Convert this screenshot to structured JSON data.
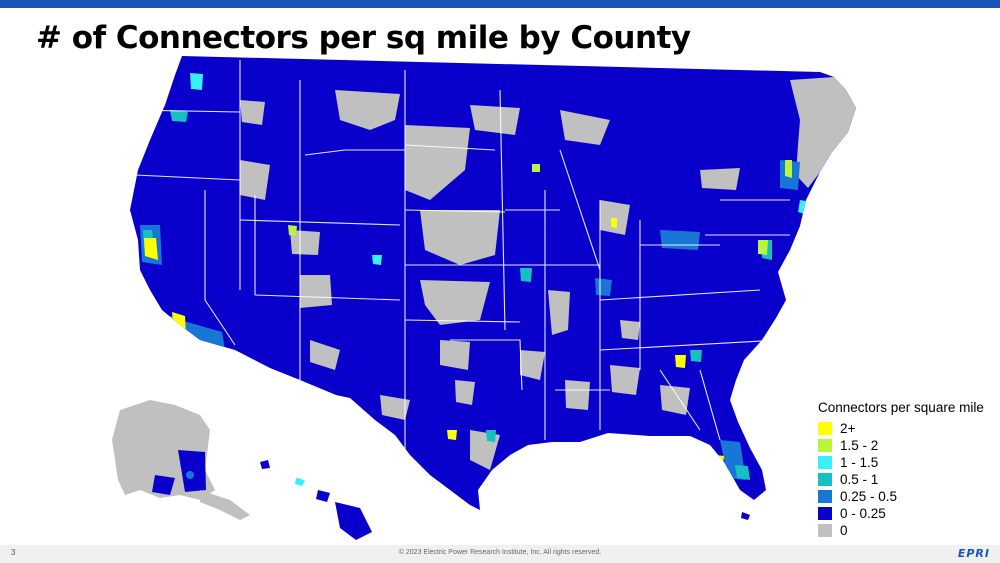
{
  "slide": {
    "title": "# of Connectors per sq mile by County",
    "page_number": "3",
    "copyright": "© 2023 Electric Power Research Institute, Inc. All rights reserved.",
    "logo_text": "EPRI"
  },
  "colors": {
    "accent_bar": "#1a56b8",
    "base_blue": "#0a00cc",
    "no_data_gray": "#c0c0c0",
    "state_border": "#ffffff"
  },
  "legend": {
    "title": "Connectors per square mile",
    "items": [
      {
        "label": "2+",
        "color": "#ffff00"
      },
      {
        "label": "1.5 - 2",
        "color": "#b8f53c"
      },
      {
        "label": "1 - 1.5",
        "color": "#37f0f8"
      },
      {
        "label": "0.5 - 1",
        "color": "#16c0c0"
      },
      {
        "label": "0.25 - 0.5",
        "color": "#1876d6"
      },
      {
        "label": "0 - 0.25",
        "color": "#0a00cc"
      },
      {
        "label": "0",
        "color": "#c0c0c0"
      }
    ]
  }
}
